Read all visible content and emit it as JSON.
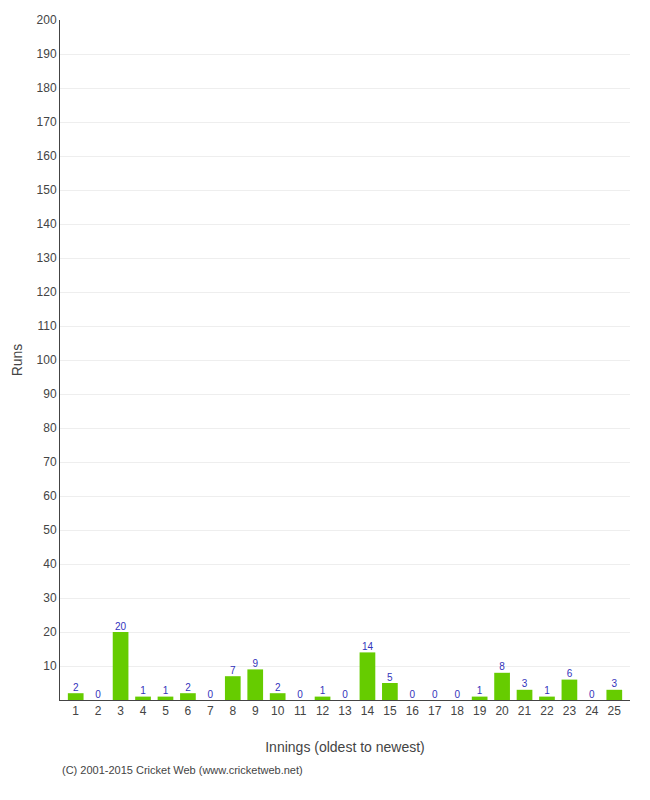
{
  "chart_data": {
    "type": "bar",
    "x": [
      1,
      2,
      3,
      4,
      5,
      6,
      7,
      8,
      9,
      10,
      11,
      12,
      13,
      14,
      15,
      16,
      17,
      18,
      19,
      20,
      21,
      22,
      23,
      24,
      25
    ],
    "values": [
      2,
      0,
      20,
      1,
      1,
      2,
      0,
      7,
      9,
      2,
      0,
      1,
      0,
      14,
      5,
      0,
      0,
      0,
      1,
      8,
      3,
      1,
      6,
      0,
      3
    ],
    "color": "#66cc00",
    "xlabel": "Innings (oldest to newest)",
    "ylabel": "Runs",
    "xlim": [
      0.3,
      25.7
    ],
    "xticks": [
      1,
      2,
      3,
      4,
      5,
      6,
      7,
      8,
      9,
      10,
      11,
      12,
      13,
      14,
      15,
      16,
      17,
      18,
      19,
      20,
      21,
      22,
      23,
      24,
      25
    ],
    "ylim": [
      0,
      200
    ],
    "yticks": [
      10,
      20,
      30,
      40,
      50,
      60,
      70,
      80,
      90,
      100,
      110,
      120,
      130,
      140,
      150,
      160,
      170,
      180,
      190,
      200
    ],
    "grid": true,
    "data_labels": true,
    "annotations": [
      "(C) 2001-2015 Cricket Web (www.cricketweb.net)"
    ]
  }
}
